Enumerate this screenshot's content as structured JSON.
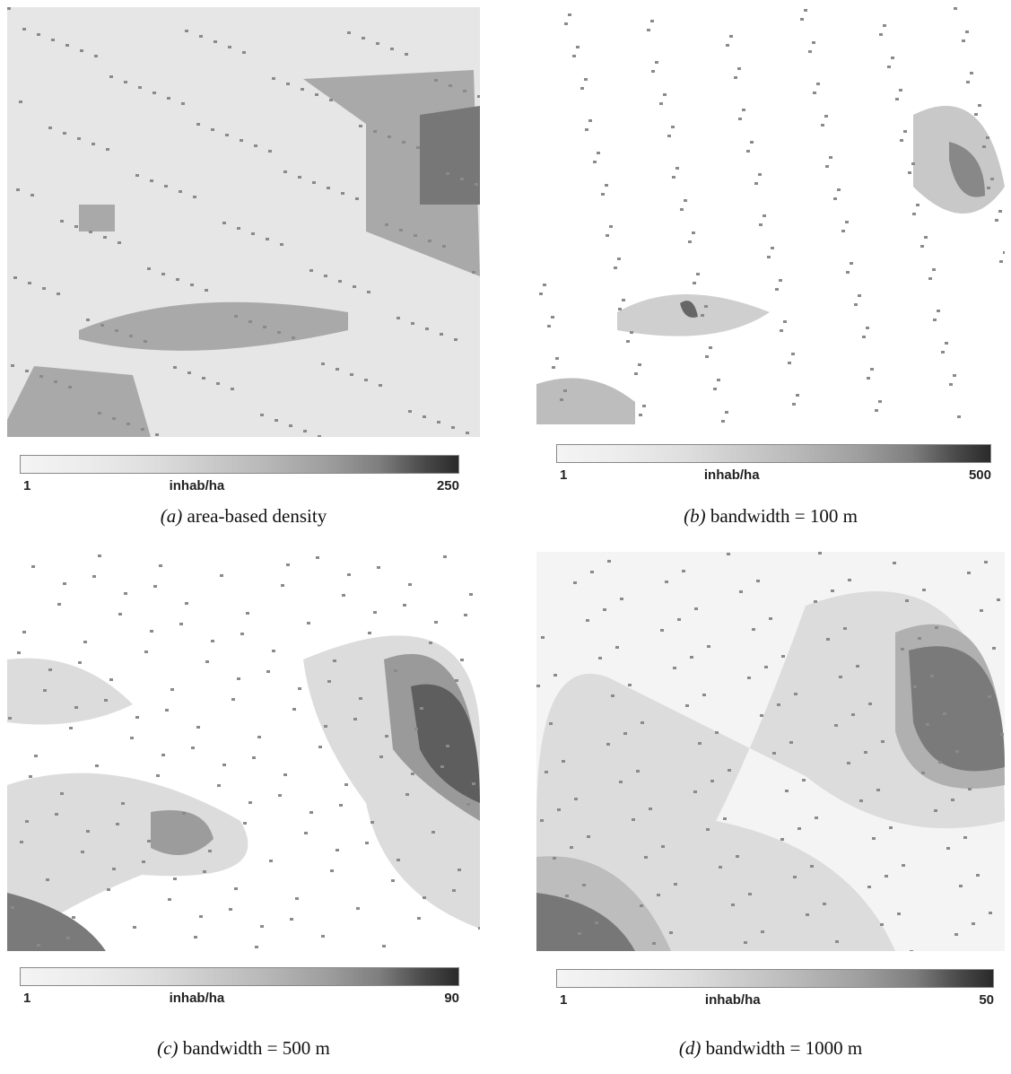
{
  "panels": [
    {
      "letter": "(a)",
      "caption": "area-based density",
      "scale": {
        "min": 1,
        "unit": "inhab/ha",
        "max": 250
      }
    },
    {
      "letter": "(b)",
      "caption": "bandwidth = 100 m",
      "scale": {
        "min": 1,
        "unit": "inhab/ha",
        "max": 500
      }
    },
    {
      "letter": "(c)",
      "caption": "bandwidth = 500 m",
      "scale": {
        "min": 1,
        "unit": "inhab/ha",
        "max": 90
      }
    },
    {
      "letter": "(d)",
      "caption": "bandwidth = 1000 m",
      "scale": {
        "min": 1,
        "unit": "inhab/ha",
        "max": 50
      }
    }
  ]
}
